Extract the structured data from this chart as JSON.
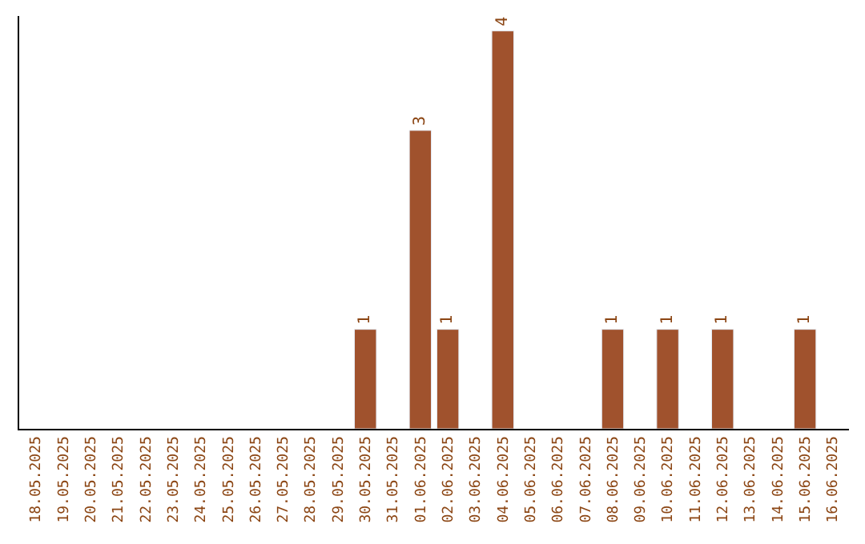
{
  "chart_data": {
    "type": "bar",
    "categories": [
      "18.05.2025",
      "19.05.2025",
      "20.05.2025",
      "21.05.2025",
      "22.05.2025",
      "23.05.2025",
      "24.05.2025",
      "25.05.2025",
      "26.05.2025",
      "27.05.2025",
      "28.05.2025",
      "29.05.2025",
      "30.05.2025",
      "31.05.2025",
      "01.06.2025",
      "02.06.2025",
      "03.06.2025",
      "04.06.2025",
      "05.06.2025",
      "06.06.2025",
      "07.06.2025",
      "08.06.2025",
      "09.06.2025",
      "10.06.2025",
      "11.06.2025",
      "12.06.2025",
      "13.06.2025",
      "14.06.2025",
      "15.06.2025",
      "16.06.2025"
    ],
    "values": [
      null,
      null,
      null,
      null,
      null,
      null,
      null,
      null,
      null,
      null,
      null,
      null,
      1,
      null,
      3,
      1,
      null,
      4,
      null,
      null,
      null,
      1,
      null,
      1,
      null,
      1,
      null,
      null,
      1,
      null
    ],
    "color": "#a0522d",
    "ylim": [
      0,
      4.15
    ],
    "data_labels": true,
    "tick_labels": "x"
  }
}
